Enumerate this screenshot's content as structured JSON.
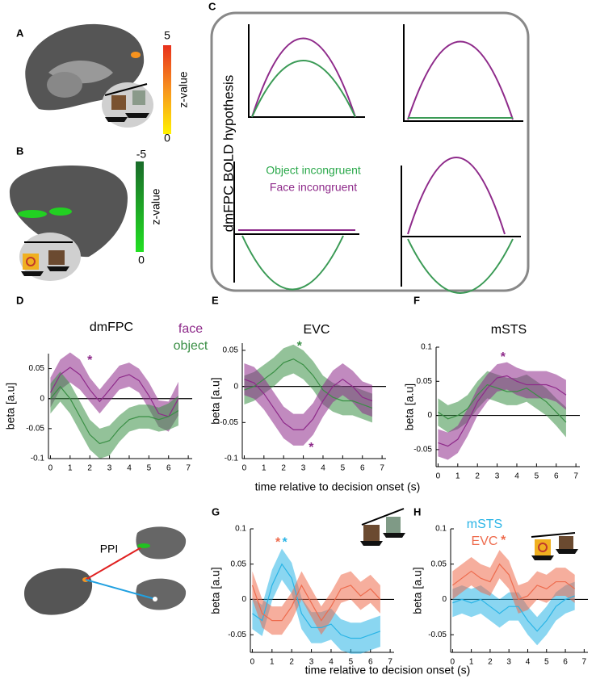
{
  "panels": {
    "A": {
      "label": "A",
      "colorbar": {
        "max": 5,
        "min": 0,
        "label": "z-value"
      }
    },
    "B": {
      "label": "B",
      "colorbar": {
        "max": -5,
        "min": 0,
        "label": "z-value"
      }
    },
    "C": {
      "label": "C",
      "title": "dmFPC BOLD hypothesis",
      "legend": [
        "Object incongruent",
        "Face incongruent"
      ]
    },
    "PPI": {
      "label": "PPI"
    }
  },
  "chart_data": [
    {
      "type": "line",
      "panel_label": "D",
      "title": "dmFPC",
      "y_label": "beta [a.u]",
      "x": [
        0,
        0.5,
        1,
        1.5,
        2,
        2.5,
        3,
        3.5,
        4,
        4.5,
        5,
        5.5,
        6,
        6.5
      ],
      "xlim": [
        -0.1,
        7.2
      ],
      "xticks": [
        0,
        1,
        2,
        3,
        4,
        5,
        6,
        7
      ],
      "ylim": [
        -0.1,
        0.075
      ],
      "yticks": [
        -0.1,
        -0.05,
        0,
        0.05
      ],
      "series": [
        {
          "name": "face",
          "color": "#8e2a8a",
          "values": [
            0.01,
            0.04,
            0.052,
            0.04,
            0.015,
            -0.005,
            0.015,
            0.035,
            0.04,
            0.03,
            0.005,
            -0.025,
            -0.03,
            0.0
          ],
          "errors": [
            0.025,
            0.025,
            0.025,
            0.025,
            0.02,
            0.02,
            0.02,
            0.02,
            0.02,
            0.02,
            0.022,
            0.022,
            0.025,
            0.028
          ]
        },
        {
          "name": "object",
          "color": "#3a8f45",
          "values": [
            0.0,
            0.02,
            0.0,
            -0.03,
            -0.06,
            -0.075,
            -0.07,
            -0.05,
            -0.035,
            -0.03,
            -0.03,
            -0.035,
            -0.03,
            -0.02
          ],
          "errors": [
            0.025,
            0.025,
            0.025,
            0.025,
            0.025,
            0.025,
            0.025,
            0.022,
            0.02,
            0.02,
            0.02,
            0.02,
            0.022,
            0.025
          ]
        }
      ],
      "annotations": [
        {
          "text": "*",
          "x": 2,
          "y": 0.063,
          "color": "#8e2a8a"
        }
      ]
    },
    {
      "type": "line",
      "panel_label": "E",
      "title": "EVC",
      "y_label": "beta [a.u]",
      "x_label": "time relative to decision onset (s)",
      "x": [
        0,
        0.5,
        1,
        1.5,
        2,
        2.5,
        3,
        3.5,
        4,
        4.5,
        5,
        5.5,
        6,
        6.5
      ],
      "xlim": [
        -0.1,
        7.2
      ],
      "xticks": [
        0,
        1,
        2,
        3,
        4,
        5,
        6,
        7
      ],
      "ylim": [
        -0.1,
        0.06
      ],
      "yticks": [
        -0.1,
        -0.05,
        0,
        0.05
      ],
      "series": [
        {
          "name": "object",
          "color": "#3a8f45",
          "values": [
            -0.005,
            0.0,
            0.01,
            0.02,
            0.033,
            0.038,
            0.03,
            0.015,
            -0.005,
            -0.015,
            -0.02,
            -0.02,
            -0.025,
            -0.03
          ],
          "errors": [
            0.02,
            0.02,
            0.02,
            0.02,
            0.02,
            0.02,
            0.02,
            0.02,
            0.02,
            0.02,
            0.02,
            0.02,
            0.02,
            0.02
          ]
        },
        {
          "name": "face",
          "color": "#8e2a8a",
          "values": [
            0.01,
            0.005,
            -0.01,
            -0.03,
            -0.05,
            -0.06,
            -0.06,
            -0.045,
            -0.02,
            0.0,
            0.01,
            0.0,
            -0.015,
            -0.02
          ],
          "errors": [
            0.022,
            0.022,
            0.022,
            0.022,
            0.022,
            0.022,
            0.022,
            0.022,
            0.022,
            0.022,
            0.022,
            0.022,
            0.022,
            0.022
          ]
        }
      ],
      "annotations": [
        {
          "text": "*",
          "x": 2.8,
          "y": 0.055,
          "color": "#3a8f45"
        },
        {
          "text": "*",
          "x": 3.4,
          "y": -0.085,
          "color": "#8e2a8a"
        }
      ]
    },
    {
      "type": "line",
      "panel_label": "F",
      "title": "mSTS",
      "y_label": "beta [a.u]",
      "x": [
        0,
        0.5,
        1,
        1.5,
        2,
        2.5,
        3,
        3.5,
        4,
        4.5,
        5,
        5.5,
        6,
        6.5
      ],
      "xlim": [
        -0.1,
        7.2
      ],
      "xticks": [
        0,
        1,
        2,
        3,
        4,
        5,
        6,
        7
      ],
      "ylim": [
        -0.075,
        0.1
      ],
      "yticks": [
        -0.05,
        0,
        0.05,
        0.1
      ],
      "series": [
        {
          "name": "object",
          "color": "#3a8f45",
          "values": [
            0.005,
            -0.005,
            0.0,
            0.01,
            0.03,
            0.045,
            0.04,
            0.035,
            0.035,
            0.04,
            0.03,
            0.02,
            0.005,
            -0.01
          ],
          "errors": [
            0.02,
            0.02,
            0.02,
            0.02,
            0.02,
            0.02,
            0.02,
            0.02,
            0.02,
            0.02,
            0.02,
            0.02,
            0.02,
            0.022
          ]
        },
        {
          "name": "face",
          "color": "#8e2a8a",
          "values": [
            -0.04,
            -0.045,
            -0.035,
            -0.01,
            0.02,
            0.04,
            0.055,
            0.058,
            0.05,
            0.045,
            0.045,
            0.045,
            0.04,
            0.03
          ],
          "errors": [
            0.02,
            0.02,
            0.02,
            0.02,
            0.02,
            0.02,
            0.02,
            0.02,
            0.02,
            0.02,
            0.02,
            0.02,
            0.02,
            0.022
          ]
        }
      ],
      "annotations": [
        {
          "text": "*",
          "x": 3.3,
          "y": 0.085,
          "color": "#8e2a8a"
        }
      ]
    },
    {
      "type": "line",
      "panel_label": "G",
      "y_label": "beta [a.u]",
      "x_label": "time relative to decision onset (s)",
      "x": [
        0,
        0.5,
        1,
        1.5,
        2,
        2.5,
        3,
        3.5,
        4,
        4.5,
        5,
        5.5,
        6,
        6.5
      ],
      "xlim": [
        -0.1,
        7.2
      ],
      "xticks": [
        0,
        1,
        2,
        3,
        4,
        5,
        6,
        7
      ],
      "ylim": [
        -0.075,
        0.1
      ],
      "yticks": [
        -0.05,
        0,
        0.05,
        0.1
      ],
      "series": [
        {
          "name": "mSTS",
          "color": "#29b4e6",
          "values": [
            -0.02,
            -0.03,
            0.02,
            0.05,
            0.03,
            -0.02,
            -0.04,
            -0.04,
            -0.035,
            -0.05,
            -0.055,
            -0.055,
            -0.05,
            -0.045
          ],
          "errors": [
            0.022,
            0.022,
            0.022,
            0.022,
            0.022,
            0.022,
            0.022,
            0.022,
            0.022,
            0.022,
            0.022,
            0.022,
            0.022,
            0.022
          ]
        },
        {
          "name": "EVC",
          "color": "#ee6b4d",
          "values": [
            0.02,
            -0.02,
            -0.03,
            -0.03,
            -0.01,
            0.02,
            -0.005,
            -0.03,
            -0.01,
            0.015,
            0.02,
            0.005,
            0.015,
            0.0
          ],
          "errors": [
            0.02,
            0.02,
            0.02,
            0.02,
            0.02,
            0.02,
            0.02,
            0.02,
            0.02,
            0.02,
            0.02,
            0.02,
            0.02,
            0.02
          ]
        }
      ],
      "annotations": [
        {
          "text": "*",
          "x": 1.3,
          "y": 0.08,
          "color": "#ee6b4d"
        },
        {
          "text": "*",
          "x": 1.65,
          "y": 0.08,
          "color": "#29b4e6"
        }
      ]
    },
    {
      "type": "line",
      "panel_label": "H",
      "y_label": "beta [a.u]",
      "x": [
        0,
        0.5,
        1,
        1.5,
        2,
        2.5,
        3,
        3.5,
        4,
        4.5,
        5,
        5.5,
        6,
        6.5
      ],
      "xlim": [
        -0.1,
        7.2
      ],
      "xticks": [
        0,
        1,
        2,
        3,
        4,
        5,
        6,
        7
      ],
      "ylim": [
        -0.075,
        0.1
      ],
      "yticks": [
        -0.05,
        0,
        0.05,
        0.1
      ],
      "series": [
        {
          "name": "mSTS",
          "color": "#29b4e6",
          "values": [
            -0.005,
            0.0,
            -0.005,
            0.0,
            -0.01,
            -0.02,
            -0.01,
            -0.01,
            -0.03,
            -0.045,
            -0.03,
            -0.01,
            0.0,
            0.005
          ],
          "errors": [
            0.02,
            0.02,
            0.02,
            0.02,
            0.02,
            0.02,
            0.02,
            0.02,
            0.02,
            0.02,
            0.02,
            0.02,
            0.02,
            0.02
          ]
        },
        {
          "name": "EVC",
          "color": "#ee6b4d",
          "values": [
            0.02,
            0.03,
            0.04,
            0.03,
            0.025,
            0.05,
            0.035,
            0.0,
            0.005,
            0.02,
            0.015,
            0.025,
            0.025,
            0.015
          ],
          "errors": [
            0.02,
            0.02,
            0.02,
            0.02,
            0.02,
            0.02,
            0.02,
            0.02,
            0.02,
            0.02,
            0.02,
            0.02,
            0.02,
            0.02
          ]
        }
      ],
      "annotations": [
        {
          "text": "*",
          "x": 2.7,
          "y": 0.083,
          "color": "#ee6b4d"
        }
      ]
    }
  ]
}
